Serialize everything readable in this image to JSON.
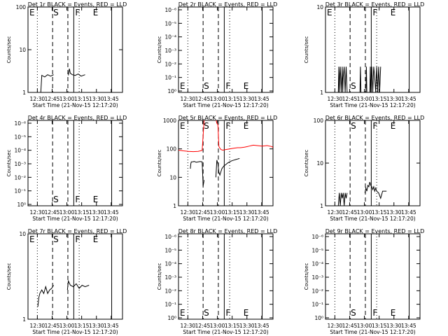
{
  "page_title": "",
  "common": {
    "x_ticks": [
      "12:30",
      "12:45",
      "13:00",
      "13:15",
      "13:30",
      "13:45"
    ],
    "x_label": "Start Time (21-Nov-15 12:17:20)",
    "y_label": "Counts/sec",
    "marker_labels": {
      "start": "S",
      "finish": "F",
      "end": "E"
    },
    "colors": {
      "events": "#000000",
      "lld": "#ff0000",
      "axes": "#000000"
    }
  },
  "chart_data": [
    {
      "type": "line",
      "title": "Det 1r  BLACK = Events, RED = LLD",
      "y_scale": "log",
      "y_ticks": [
        "1",
        "10",
        "100"
      ],
      "ylim": [
        1,
        100
      ],
      "xlim_minutes_after_start": [
        0,
        96
      ],
      "markers_minutes_after_start": {
        "dotted": [
          9.5,
          52
        ],
        "dashed": [
          25,
          40.5
        ],
        "solid": [
          46.5,
          85
        ]
      },
      "labels_visible": {
        "E_left": true,
        "S": true,
        "F": true,
        "E_right": true
      },
      "series": [
        {
          "color": "events",
          "segments": [
            {
              "x": [
                13,
                14,
                17,
                20,
                23,
                26
              ],
              "y": [
                1.0,
                2.5,
                2.3,
                2.6,
                2.4,
                2.6
              ]
            },
            {
              "x": [
                41,
                42,
                43,
                45,
                48,
                51,
                54,
                58
              ],
              "y": [
                2.5,
                3.6,
                2.8,
                2.6,
                2.5,
                2.7,
                2.4,
                2.6
              ]
            }
          ]
        }
      ]
    },
    {
      "type": "line",
      "title": "Det 2r  BLACK = Events, RED = LLD",
      "y_scale": "log",
      "y_ticks": [
        "10⁰",
        "10⁻¹",
        "10⁻²",
        "10⁻³",
        "10⁻⁴",
        "10⁻⁵",
        "10⁻⁶"
      ],
      "ylim": [
        0.5,
        7
      ],
      "xlim_minutes_after_start": [
        0,
        96
      ],
      "markers_minutes_after_start": {
        "dotted": [
          9.5,
          52
        ],
        "dashed": [
          25,
          40.5
        ],
        "solid": [
          46.5,
          85
        ]
      },
      "labels_visible": {
        "E_left": true,
        "S": true,
        "F": true,
        "E_right": true
      },
      "series": []
    },
    {
      "type": "line",
      "title": "Det 3r  BLACK = Events, RED = LLD",
      "y_scale": "log",
      "y_ticks": [
        "1",
        "10"
      ],
      "ylim": [
        1,
        10
      ],
      "xlim_minutes_after_start": [
        0,
        96
      ],
      "markers_minutes_after_start": {
        "dotted": [
          9.5,
          52
        ],
        "dashed": [
          25,
          40.5
        ],
        "solid": [
          46.5,
          85
        ]
      },
      "labels_visible": {
        "E_left": true,
        "S": true,
        "F": true,
        "E_right": true
      },
      "series": [
        {
          "color": "events",
          "segments": [
            {
              "x": [
                13,
                13.5,
                14,
                14.5,
                15,
                16,
                17,
                17.5,
                18,
                19,
                20,
                21,
                22
              ],
              "y": [
                1,
                2,
                1,
                1.6,
                2,
                1,
                2,
                1,
                1.5,
                2,
                1,
                2,
                1
              ]
            },
            {
              "x": [
                35,
                35.5,
                36,
                41,
                41.5,
                42
              ],
              "y": [
                1,
                2,
                1,
                1,
                2,
                1
              ]
            },
            {
              "x": [
                45,
                45.5,
                46,
                47,
                48,
                49,
                50,
                51,
                52,
                53,
                54,
                55,
                56
              ],
              "y": [
                1,
                2,
                1,
                2,
                1,
                2,
                1.5,
                1,
                2,
                1,
                2,
                1,
                2
              ]
            }
          ]
        }
      ]
    },
    {
      "type": "line",
      "title": "Det 4r  BLACK = Events, RED = LLD",
      "y_scale": "log",
      "y_ticks": [
        "10⁰",
        "10⁻¹",
        "10⁻²",
        "10⁻³",
        "10⁻⁴",
        "10⁻⁵",
        "10⁻⁶"
      ],
      "ylim": [
        0.5,
        7
      ],
      "xlim_minutes_after_start": [
        0,
        96
      ],
      "markers_minutes_after_start": {
        "dotted": [
          9.5,
          52
        ],
        "dashed": [
          25,
          40.5
        ],
        "solid": [
          46.5,
          85
        ]
      },
      "labels_visible": {
        "E_left": false,
        "S": true,
        "F": true,
        "E_right": true
      },
      "series": []
    },
    {
      "type": "line",
      "title": "Det 5r  BLACK = Events, RED = LLD",
      "y_scale": "log",
      "y_ticks": [
        "1",
        "10",
        "100",
        "1000"
      ],
      "ylim": [
        1,
        1000
      ],
      "xlim_minutes_after_start": [
        0,
        96
      ],
      "markers_minutes_after_start": {
        "dotted": [
          9.5,
          52
        ],
        "dashed": [
          25,
          40.5
        ],
        "solid": [
          46.5,
          85
        ]
      },
      "labels_visible": {
        "E_left": true,
        "S": true,
        "F": true,
        "E_right": true
      },
      "series": [
        {
          "color": "lld",
          "segments": [
            {
              "x": [
                0,
                5,
                10,
                15,
                20,
                24,
                25,
                26,
                27,
                30,
                33,
                35,
                37,
                38,
                39,
                40,
                41,
                43,
                45,
                48,
                52,
                56,
                60,
                63,
                67,
                70,
                72,
                74,
                76,
                80,
                85,
                90,
                95,
                96
              ],
              "y": [
                90,
                85,
                82,
                80,
                82,
                88,
                300,
                1000,
                1100,
                1200,
                1200,
                1200,
                1200,
                1100,
                800,
                700,
                120,
                95,
                90,
                95,
                100,
                105,
                110,
                110,
                115,
                120,
                125,
                130,
                135,
                130,
                125,
                130,
                120,
                110
              ]
            }
          ]
        },
        {
          "color": "events",
          "segments": [
            {
              "x": [
                12,
                12.5,
                13,
                14,
                16,
                18,
                20,
                22,
                24,
                25,
                26
              ],
              "y": [
                20,
                30,
                35,
                35,
                36,
                34,
                35,
                36,
                35,
                5,
                8
              ]
            },
            {
              "x": [
                38,
                39,
                40,
                41,
                42,
                44,
                46,
                48,
                50,
                52,
                54,
                56,
                58,
                60,
                62
              ],
              "y": [
                10,
                40,
                30,
                15,
                12,
                20,
                25,
                28,
                32,
                35,
                38,
                40,
                42,
                44,
                46
              ]
            }
          ]
        }
      ]
    },
    {
      "type": "line",
      "title": "Det 6r  BLACK = Events, RED = LLD",
      "y_scale": "log",
      "y_ticks": [
        "1",
        "10",
        "100"
      ],
      "ylim": [
        1,
        100
      ],
      "xlim_minutes_after_start": [
        0,
        96
      ],
      "markers_minutes_after_start": {
        "dotted": [
          9.5,
          52
        ],
        "dashed": [
          25,
          40.5
        ],
        "solid": [
          46.5,
          85
        ]
      },
      "labels_visible": {
        "E_left": false,
        "S": true,
        "F": true,
        "E_right": true
      },
      "series": [
        {
          "color": "events",
          "segments": [
            {
              "x": [
                13,
                14,
                15,
                16,
                17,
                18,
                19,
                20,
                21,
                22
              ],
              "y": [
                1,
                2,
                1,
                2,
                1.5,
                2,
                1,
                2,
                1.5,
                2
              ]
            },
            {
              "x": [
                40,
                41,
                42,
                43,
                44,
                45,
                46,
                47,
                48,
                49,
                50,
                51,
                52,
                54,
                56,
                58,
                60,
                62
              ],
              "y": [
                2,
                2.6,
                2.2,
                3,
                2.8,
                3.6,
                3,
                2.8,
                2.4,
                2.8,
                2.2,
                2.6,
                2.2,
                2,
                1.5,
                2.2,
                2.2,
                2.2
              ]
            }
          ]
        }
      ]
    },
    {
      "type": "line",
      "title": "Det 7r  BLACK = Events, RED = LLD",
      "y_scale": "log",
      "y_ticks": [
        "1",
        "10"
      ],
      "ylim": [
        1,
        10
      ],
      "xlim_minutes_after_start": [
        0,
        96
      ],
      "markers_minutes_after_start": {
        "dotted": [
          9.5,
          52
        ],
        "dashed": [
          25,
          40.5
        ],
        "solid": [
          46.5,
          85
        ]
      },
      "labels_visible": {
        "E_left": true,
        "S": true,
        "F": true,
        "E_right": true
      },
      "series": [
        {
          "color": "events",
          "segments": [
            {
              "x": [
                10,
                11,
                12,
                14,
                16,
                18,
                20,
                22,
                24,
                26
              ],
              "y": [
                1.4,
                1.8,
                2.0,
                2.2,
                2.0,
                2.4,
                2.0,
                2.2,
                2.3,
                2.5
              ]
            },
            {
              "x": [
                40,
                41,
                43,
                46,
                49,
                52,
                55,
                58,
                62
              ],
              "y": [
                2.2,
                2.8,
                2.5,
                2.4,
                2.6,
                2.3,
                2.5,
                2.4,
                2.5
              ]
            }
          ]
        }
      ]
    },
    {
      "type": "line",
      "title": "Det 8r  BLACK = Events, RED = LLD",
      "y_scale": "log",
      "y_ticks": [
        "10⁰",
        "10⁻¹",
        "10⁻²",
        "10⁻³",
        "10⁻⁴",
        "10⁻⁵",
        "10⁻⁶"
      ],
      "ylim": [
        0.5,
        7
      ],
      "xlim_minutes_after_start": [
        0,
        96
      ],
      "markers_minutes_after_start": {
        "dotted": [
          9.5,
          52
        ],
        "dashed": [
          25,
          40.5
        ],
        "solid": [
          46.5,
          85
        ]
      },
      "labels_visible": {
        "E_left": true,
        "S": true,
        "F": true,
        "E_right": true
      },
      "series": []
    },
    {
      "type": "line",
      "title": "Det 9r  BLACK = Events, RED = LLD",
      "y_scale": "log",
      "y_ticks": [
        "10⁰",
        "10⁻¹",
        "10⁻²",
        "10⁻³",
        "10⁻⁴",
        "10⁻⁵",
        "10⁻⁶"
      ],
      "ylim": [
        0.5,
        7
      ],
      "xlim_minutes_after_start": [
        0,
        96
      ],
      "markers_minutes_after_start": {
        "dotted": [
          9.5,
          52
        ],
        "dashed": [
          25,
          40.5
        ],
        "solid": [
          46.5,
          85
        ]
      },
      "labels_visible": {
        "E_left": false,
        "S": true,
        "F": true,
        "E_right": true
      },
      "series": []
    }
  ]
}
